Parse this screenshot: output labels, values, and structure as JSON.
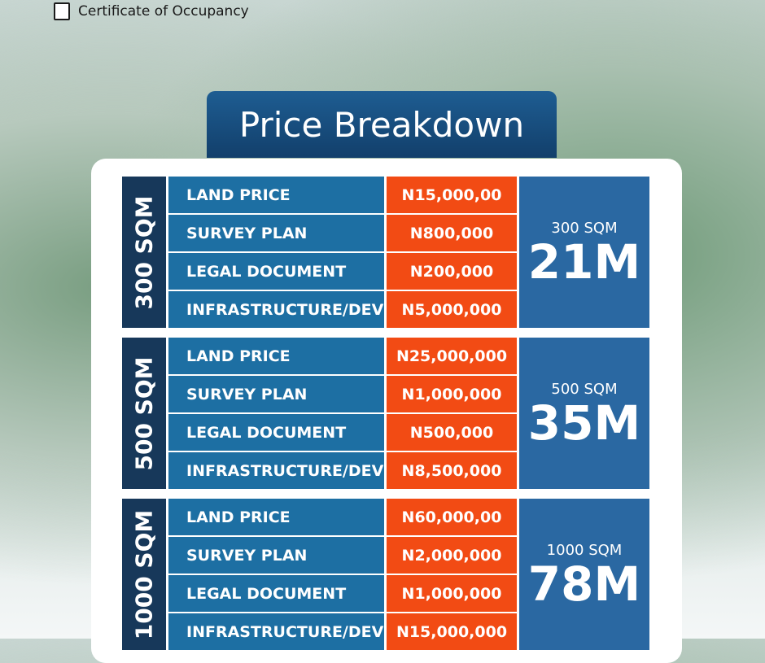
{
  "header": {
    "label": "Certificate of Occupancy"
  },
  "title": "Price Breakdown",
  "sections": [
    {
      "side": "300 SQM",
      "size": "300 SQM",
      "total": "21M",
      "rows": [
        {
          "item": "LAND PRICE",
          "price": "N15,000,00"
        },
        {
          "item": "SURVEY PLAN",
          "price": "N800,000"
        },
        {
          "item": "LEGAL DOCUMENT",
          "price": "N200,000"
        },
        {
          "item": "INFRASTRUCTURE/DEV",
          "price": "N5,000,000"
        }
      ]
    },
    {
      "side": "500 SQM",
      "size": "500 SQM",
      "total": "35M",
      "rows": [
        {
          "item": "LAND PRICE",
          "price": "N25,000,000"
        },
        {
          "item": "SURVEY PLAN",
          "price": "N1,000,000"
        },
        {
          "item": "LEGAL DOCUMENT",
          "price": "N500,000"
        },
        {
          "item": "INFRASTRUCTURE/DEV",
          "price": "N8,500,000"
        }
      ]
    },
    {
      "side": "1000 SQM",
      "size": "1000 SQM",
      "total": "78M",
      "rows": [
        {
          "item": "LAND PRICE",
          "price": "N60,000,00"
        },
        {
          "item": "SURVEY PLAN",
          "price": "N2,000,000"
        },
        {
          "item": "LEGAL DOCUMENT",
          "price": "N1,000,000"
        },
        {
          "item": "INFRASTRUCTURE/DEV",
          "price": "N15,000,000"
        }
      ]
    }
  ]
}
